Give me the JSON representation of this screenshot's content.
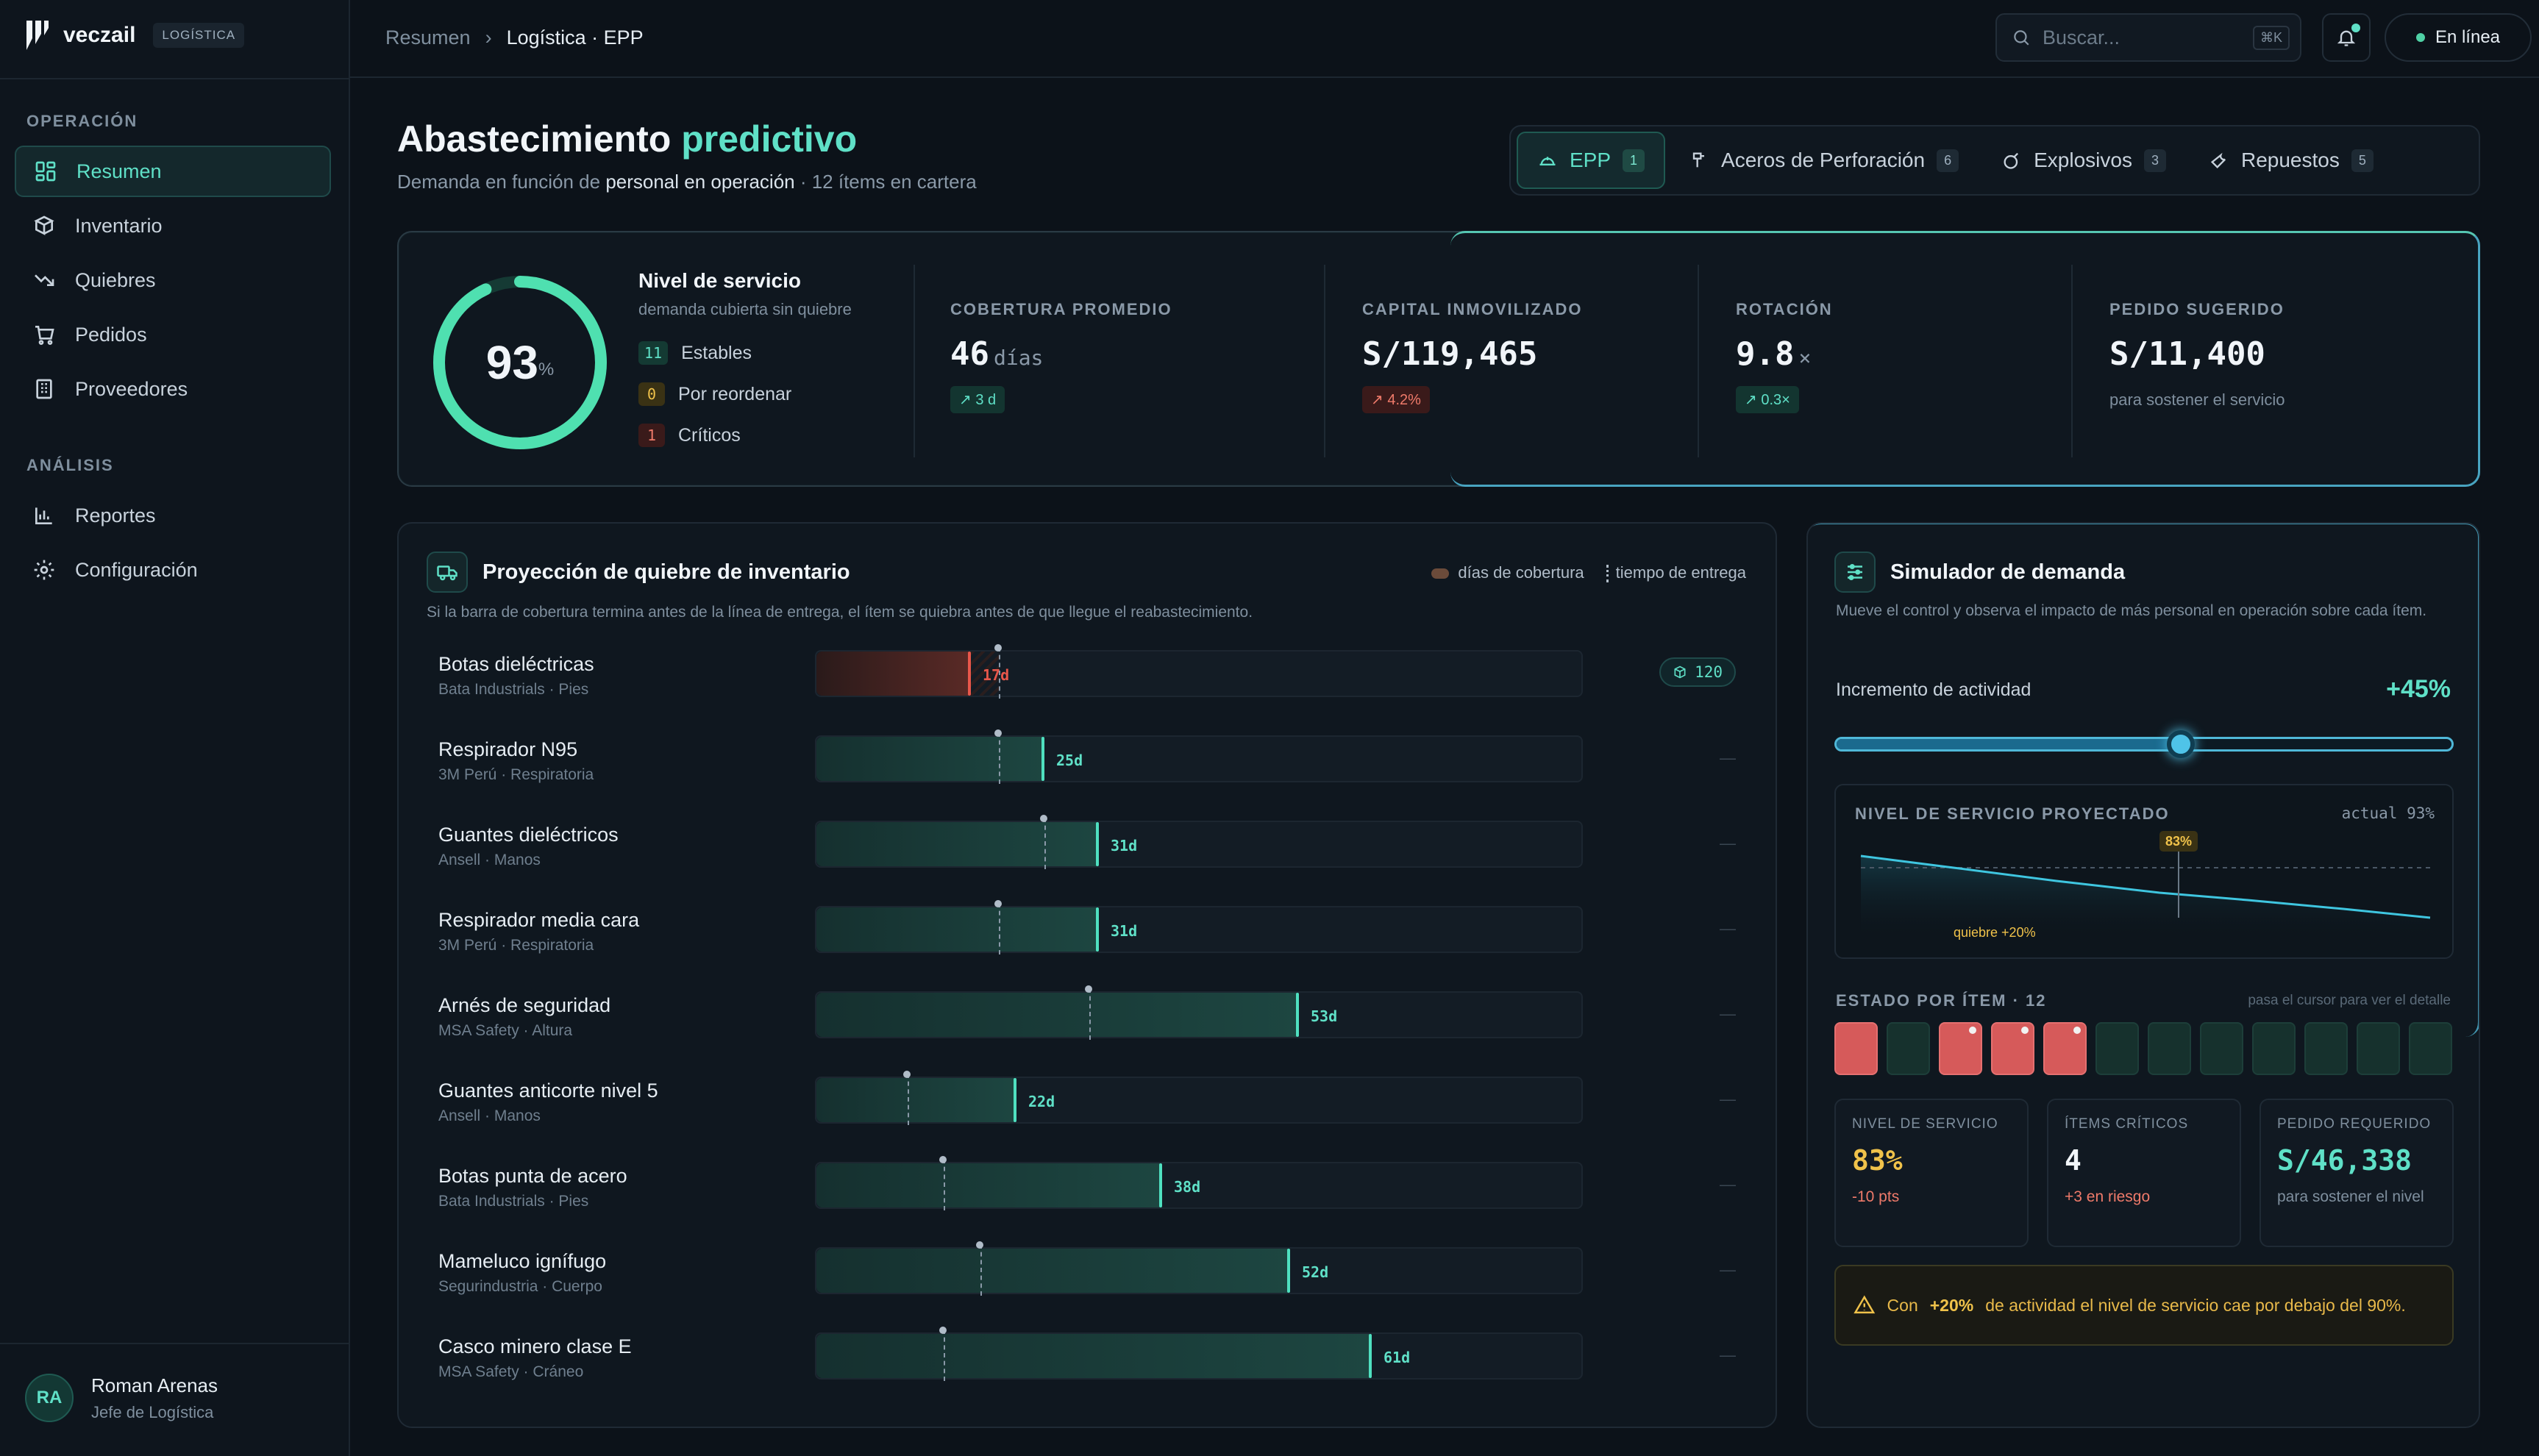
{
  "brand": {
    "name": "veczail",
    "badge": "LOGÍSTICA"
  },
  "sidebar": {
    "sections": [
      {
        "label": "OPERACIÓN",
        "items": [
          {
            "label": "Resumen",
            "icon": "grid-icon",
            "active": true
          },
          {
            "label": "Inventario",
            "icon": "boxes-icon"
          },
          {
            "label": "Quiebres",
            "icon": "trend-down-icon"
          },
          {
            "label": "Pedidos",
            "icon": "cart-icon"
          },
          {
            "label": "Proveedores",
            "icon": "building-icon"
          }
        ]
      },
      {
        "label": "ANÁLISIS",
        "items": [
          {
            "label": "Reportes",
            "icon": "bar-chart-icon"
          },
          {
            "label": "Configuración",
            "icon": "gear-icon"
          }
        ]
      }
    ],
    "user": {
      "initials": "RA",
      "name": "Roman Arenas",
      "role": "Jefe de Logística"
    }
  },
  "topbar": {
    "breadcrumb": [
      "Resumen",
      "Logística · EPP"
    ],
    "search_placeholder": "Buscar...",
    "search_shortcut": "⌘K",
    "status": "En línea"
  },
  "header": {
    "title_a": "Abastecimiento ",
    "title_b": "predictivo",
    "subtitle_a": "Demanda en función de ",
    "subtitle_b": "personal en operación",
    "subtitle_c": " · 12 ítems en cartera"
  },
  "tabs": [
    {
      "label": "EPP",
      "count": "1",
      "active": true
    },
    {
      "label": "Aceros de Perforación",
      "count": "6"
    },
    {
      "label": "Explosivos",
      "count": "3"
    },
    {
      "label": "Repuestos",
      "count": "5"
    }
  ],
  "kpi": {
    "service": {
      "value": "93",
      "unit": "%",
      "fraction": 0.93,
      "title": "Nivel de servicio",
      "subtitle": "demanda cubierta sin quiebre",
      "rows": [
        {
          "count": "11",
          "label": "Estables"
        },
        {
          "count": "0",
          "label": "Por reordenar"
        },
        {
          "count": "1",
          "label": "Críticos"
        }
      ]
    },
    "metrics": [
      {
        "label": "COBERTURA PROMEDIO",
        "value": "46",
        "unit": "días",
        "chip": "↗ 3 d",
        "tone": "g"
      },
      {
        "label": "CAPITAL INMOVILIZADO",
        "value": "S/119,465",
        "unit": "",
        "chip": "↗ 4.2%",
        "tone": "r"
      },
      {
        "label": "ROTACIÓN",
        "value": "9.8",
        "unit": "×",
        "chip": "↗ 0.3×",
        "tone": "g"
      },
      {
        "label": "PEDIDO SUGERIDO",
        "value": "S/11,400",
        "unit": "",
        "note": "para sostener el servicio"
      }
    ]
  },
  "projection": {
    "title": "Proyección de quiebre de inventario",
    "description": "Si la barra de cobertura termina antes de la línea de entrega, el ítem se quiebra antes de que llegue el reabastecimiento.",
    "legend": {
      "coverage": "días de cobertura",
      "lead": "tiempo de entrega"
    },
    "scale_max_days": 84,
    "items": [
      {
        "name": "Botas dieléctricas",
        "sub": "Bata Industrials · Pies",
        "days": 17,
        "lead": 20,
        "label": "17d",
        "critical": true,
        "tag": "120"
      },
      {
        "name": "Respirador N95",
        "sub": "3M Perú · Respiratoria",
        "days": 25,
        "lead": 20,
        "label": "25d",
        "tag": "—"
      },
      {
        "name": "Guantes dieléctricos",
        "sub": "Ansell · Manos",
        "days": 31,
        "lead": 25,
        "label": "31d",
        "tag": "—"
      },
      {
        "name": "Respirador media cara",
        "sub": "3M Perú · Respiratoria",
        "days": 31,
        "lead": 20,
        "label": "31d",
        "tag": "—"
      },
      {
        "name": "Arnés de seguridad",
        "sub": "MSA Safety · Altura",
        "days": 53,
        "lead": 30,
        "label": "53d",
        "tag": "—"
      },
      {
        "name": "Guantes anticorte nivel 5",
        "sub": "Ansell · Manos",
        "days": 22,
        "lead": 10,
        "label": "22d",
        "tag": "—"
      },
      {
        "name": "Botas punta de acero",
        "sub": "Bata Industrials · Pies",
        "days": 38,
        "lead": 14,
        "label": "38d",
        "tag": "—"
      },
      {
        "name": "Mameluco ignífugo",
        "sub": "Segurindustria · Cuerpo",
        "days": 52,
        "lead": 18,
        "label": "52d",
        "tag": "—"
      },
      {
        "name": "Casco minero clase E",
        "sub": "MSA Safety · Cráneo",
        "days": 61,
        "lead": 14,
        "label": "61d",
        "tag": "—"
      }
    ]
  },
  "simulator": {
    "title": "Simulador de demanda",
    "description": "Mueve el control y observa el impacto de más personal en operación sobre cada ítem.",
    "increment_label": "Incremento de actividad",
    "increment_value": "+45%",
    "slider_fraction": 0.56,
    "projected": {
      "title": "NIVEL DE SERVICIO PROYECTADO",
      "actual": "actual 93%",
      "marker": "83%",
      "break_label": "quiebre +20%"
    },
    "status_label": "ESTADO POR ÍTEM · 12",
    "status_hint": "pasa el cursor para ver el detalle",
    "tiles": [
      {
        "crit": true,
        "dot": false
      },
      {
        "crit": false,
        "dot": false
      },
      {
        "crit": true,
        "dot": true
      },
      {
        "crit": true,
        "dot": true
      },
      {
        "crit": true,
        "dot": true
      },
      {
        "crit": false,
        "dot": false
      },
      {
        "crit": false,
        "dot": false
      },
      {
        "crit": false,
        "dot": false
      },
      {
        "crit": false,
        "dot": false
      },
      {
        "crit": false,
        "dot": false
      },
      {
        "crit": false,
        "dot": false
      },
      {
        "crit": false,
        "dot": false
      }
    ],
    "stats": [
      {
        "label": "NIVEL DE SERVICIO",
        "value": "83%",
        "note": "-10 pts",
        "color": "#f0c24a",
        "note_color": "#ef7a6a"
      },
      {
        "label": "ÍTEMS CRÍTICOS",
        "value": "4",
        "note": "+3 en riesgo",
        "color": "#f1f5f9",
        "note_color": "#ef7a6a"
      },
      {
        "label": "PEDIDO REQUERIDO",
        "value": "S/46,338",
        "note": "para sostener el nivel",
        "color": "#5fe0c7",
        "note_color": "#7f8f9e"
      }
    ],
    "warning": {
      "prefix": "Con",
      "bold": "+20%",
      "text": "de actividad el nivel de servicio cae por debajo del 90%."
    }
  },
  "colors": {
    "accent": "#5fe0c7",
    "danger": "#e8574b",
    "warning": "#f0c24a",
    "info": "#4fb8d8"
  }
}
